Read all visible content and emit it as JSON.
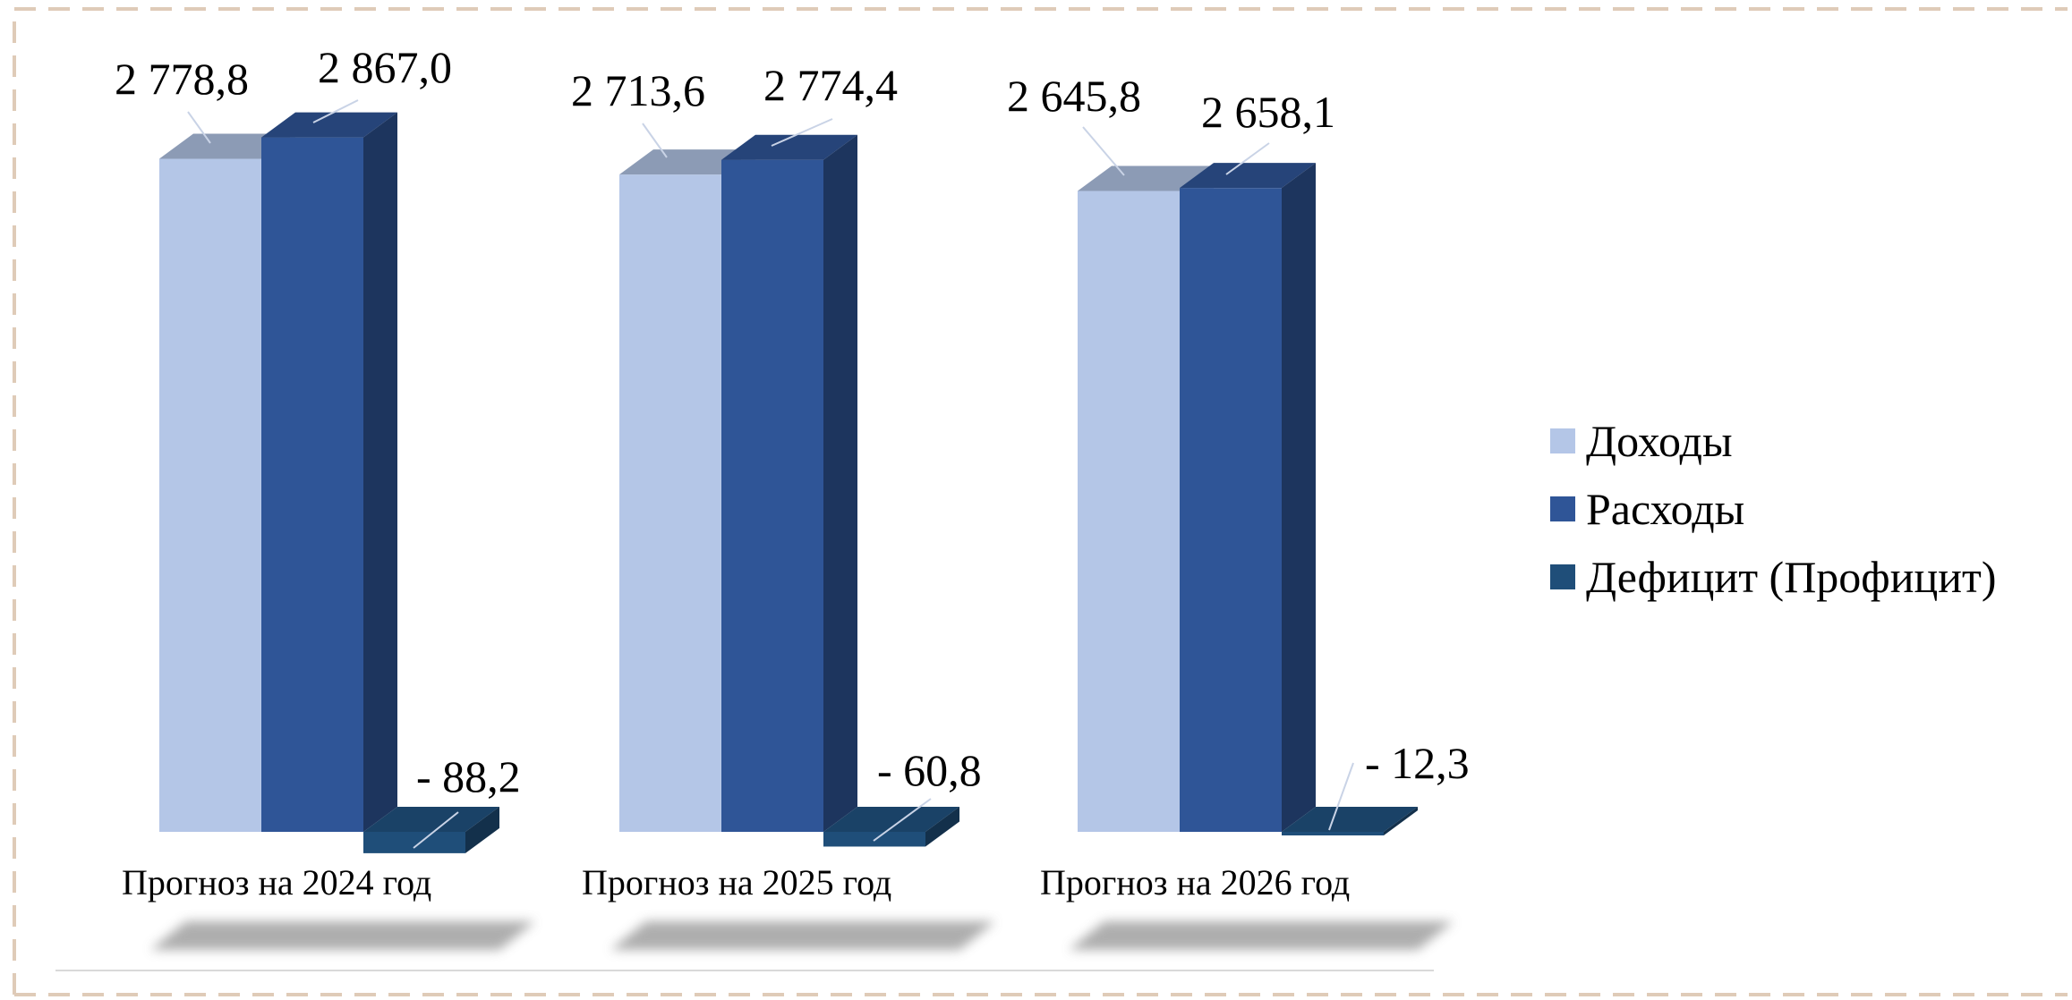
{
  "chart_data": {
    "type": "bar",
    "categories": [
      "Прогноз на 2024 год",
      "Прогноз на 2025 год",
      "Прогноз на 2026 год"
    ],
    "series": [
      {
        "name": "Доходы",
        "values": [
          2778.8,
          2713.6,
          2645.8
        ],
        "labels": [
          "2 778,8",
          "2 713,6",
          "2 645,8"
        ],
        "color": "#b4c6e7"
      },
      {
        "name": "Расходы",
        "values": [
          2867.0,
          2774.4,
          2658.1
        ],
        "labels": [
          "2 867,0",
          "2 774,4",
          "2 658,1"
        ],
        "color": "#2f5597"
      },
      {
        "name": "Дефицит (Профицит)",
        "values": [
          -88.2,
          -60.8,
          -12.3
        ],
        "labels": [
          "- 88,2",
          "- 60,8",
          "- 12,3"
        ],
        "color": "#1f4e79"
      }
    ],
    "legend_position": "right",
    "grid": false,
    "style": "3d-columns"
  }
}
